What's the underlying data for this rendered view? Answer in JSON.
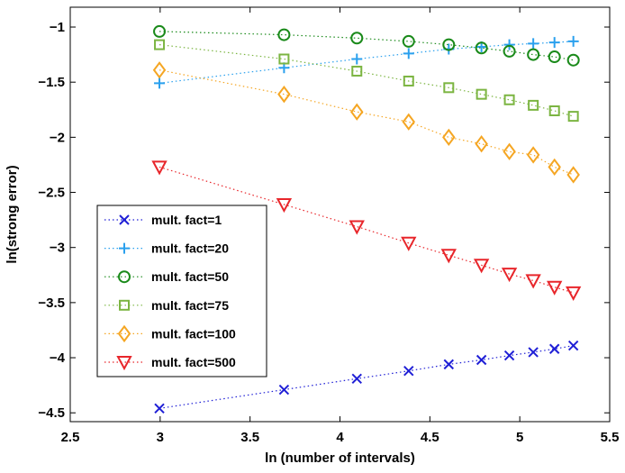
{
  "chart_data": {
    "type": "line",
    "xlabel": "ln (number of intervals)",
    "ylabel": "ln(strong error)",
    "xlim": [
      2.5,
      5.5
    ],
    "ylim": [
      -4.58,
      -0.82
    ],
    "xticks": [
      2.5,
      3,
      3.5,
      4,
      4.5,
      5,
      5.5
    ],
    "xtick_labels": [
      "2.5",
      "3",
      "3.5",
      "4",
      "4.5",
      "5",
      "5.5"
    ],
    "yticks": [
      -4.5,
      -4,
      -3.5,
      -3,
      -2.5,
      -2,
      -1.5,
      -1
    ],
    "ytick_labels": [
      "−4.5",
      "−4",
      "−3.5",
      "−3",
      "−2.5",
      "−2",
      "−1.5",
      "−1"
    ],
    "grid": false,
    "legend_position": "left-middle",
    "x": [
      2.996,
      3.689,
      4.094,
      4.382,
      4.605,
      4.787,
      4.942,
      5.075,
      5.193,
      5.298
    ],
    "series": [
      {
        "name": "mult. fact=1",
        "color": "#1f1fd6",
        "marker": "x",
        "values": [
          -4.46,
          -4.29,
          -4.19,
          -4.12,
          -4.06,
          -4.02,
          -3.98,
          -3.95,
          -3.92,
          -3.89
        ]
      },
      {
        "name": "mult. fact=20",
        "color": "#2aa0ee",
        "marker": "plus",
        "values": [
          -1.51,
          -1.37,
          -1.29,
          -1.24,
          -1.2,
          -1.18,
          -1.16,
          -1.15,
          -1.14,
          -1.13
        ]
      },
      {
        "name": "mult. fact=50",
        "color": "#1a8a1a",
        "marker": "circle",
        "values": [
          -1.04,
          -1.07,
          -1.1,
          -1.13,
          -1.16,
          -1.19,
          -1.22,
          -1.25,
          -1.27,
          -1.3
        ]
      },
      {
        "name": "mult. fact=75",
        "color": "#7cb542",
        "marker": "square",
        "values": [
          -1.16,
          -1.29,
          -1.4,
          -1.49,
          -1.55,
          -1.61,
          -1.66,
          -1.71,
          -1.76,
          -1.81
        ]
      },
      {
        "name": "mult. fact=100",
        "color": "#f5a623",
        "marker": "diamond",
        "values": [
          -1.39,
          -1.61,
          -1.77,
          -1.86,
          -2.0,
          -2.06,
          -2.13,
          -2.16,
          -2.27,
          -2.34
        ]
      },
      {
        "name": "mult. fact=500",
        "color": "#e8262b",
        "marker": "triangle-down",
        "values": [
          -2.27,
          -2.61,
          -2.81,
          -2.96,
          -3.07,
          -3.16,
          -3.24,
          -3.3,
          -3.36,
          -3.41
        ]
      }
    ]
  }
}
